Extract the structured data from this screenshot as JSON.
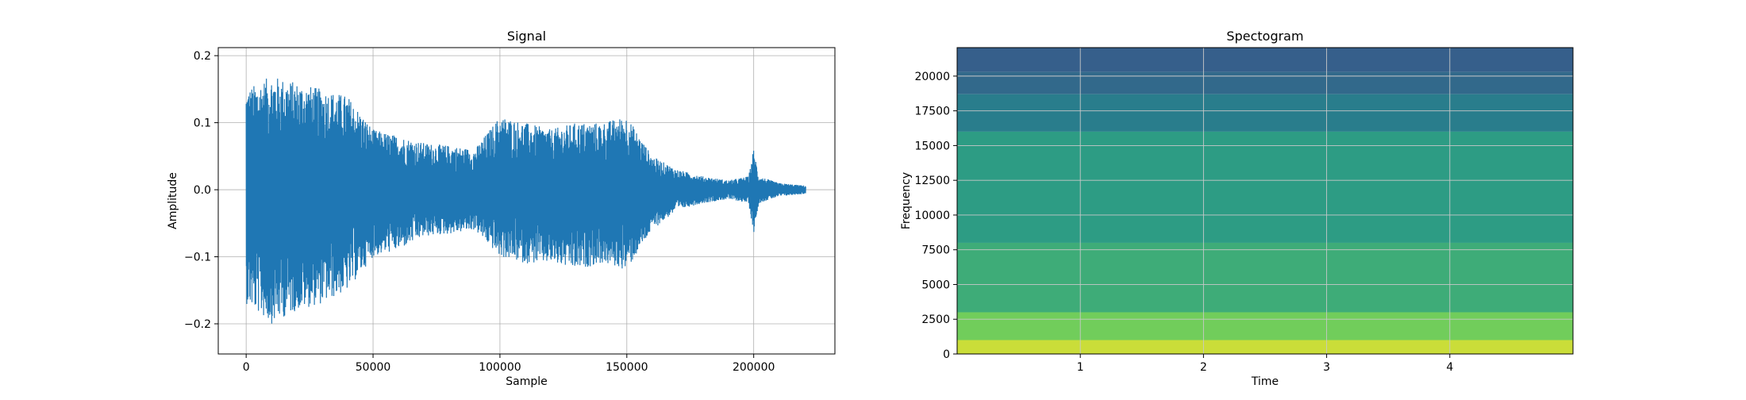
{
  "chart_data": [
    {
      "type": "line",
      "title": "Signal",
      "xlabel": "Sample",
      "ylabel": "Amplitude",
      "xlim": [
        -11000,
        232000
      ],
      "ylim": [
        -0.245,
        0.212
      ],
      "xticks": [
        0,
        50000,
        100000,
        150000,
        200000
      ],
      "xtick_labels": [
        "0",
        "50000",
        "100000",
        "150000",
        "200000"
      ],
      "yticks": [
        -0.2,
        -0.1,
        0.0,
        0.1,
        0.2
      ],
      "ytick_labels": [
        "−0.2",
        "−0.1",
        "0.0",
        "0.1",
        "0.2"
      ],
      "grid": true,
      "color": "#1f77b4",
      "series": [
        {
          "x": [
            0,
            10000,
            20000,
            30000,
            40000,
            50000,
            60000,
            70000,
            80000,
            90000,
            100000,
            110000,
            120000,
            130000,
            140000,
            150000,
            160000,
            170000,
            180000,
            190000,
            198000,
            200000,
            202000,
            210000,
            220500
          ],
          "upper": [
            0.15,
            0.17,
            0.16,
            0.15,
            0.14,
            0.09,
            0.08,
            0.07,
            0.066,
            0.06,
            0.11,
            0.1,
            0.09,
            0.1,
            0.1,
            0.11,
            0.05,
            0.03,
            0.02,
            0.014,
            0.02,
            0.062,
            0.02,
            0.01,
            0.006
          ],
          "lower": [
            -0.17,
            -0.2,
            -0.18,
            -0.17,
            -0.15,
            -0.1,
            -0.09,
            -0.07,
            -0.066,
            -0.06,
            -0.1,
            -0.11,
            -0.11,
            -0.12,
            -0.11,
            -0.12,
            -0.06,
            -0.03,
            -0.02,
            -0.014,
            -0.02,
            -0.065,
            -0.02,
            -0.01,
            -0.006
          ]
        }
      ]
    },
    {
      "type": "heatmap",
      "title": "Spectogram",
      "xlabel": "Time",
      "ylabel": "Frequency",
      "xlim": [
        0,
        5.0
      ],
      "ylim": [
        0,
        22050
      ],
      "xticks": [
        1,
        2,
        3,
        4
      ],
      "xtick_labels": [
        "1",
        "2",
        "3",
        "4"
      ],
      "yticks": [
        0,
        2500,
        5000,
        7500,
        10000,
        12500,
        15000,
        17500,
        20000
      ],
      "ytick_labels": [
        "0",
        "2500",
        "5000",
        "7500",
        "10000",
        "12500",
        "15000",
        "17500",
        "20000"
      ],
      "grid": true,
      "colormap": "viridis",
      "bands": [
        {
          "f0": 20300,
          "f1": 22050,
          "level": 0.3
        },
        {
          "f0": 18700,
          "f1": 20300,
          "level": 0.34
        },
        {
          "f0": 16000,
          "f1": 18700,
          "level": 0.42
        },
        {
          "f0": 8000,
          "f1": 16000,
          "level": 0.55
        },
        {
          "f0": 3000,
          "f1": 8000,
          "level": 0.62
        },
        {
          "f0": 1000,
          "f1": 3000,
          "level": 0.78
        },
        {
          "f0": 0,
          "f1": 1000,
          "level": 0.92
        }
      ]
    }
  ]
}
